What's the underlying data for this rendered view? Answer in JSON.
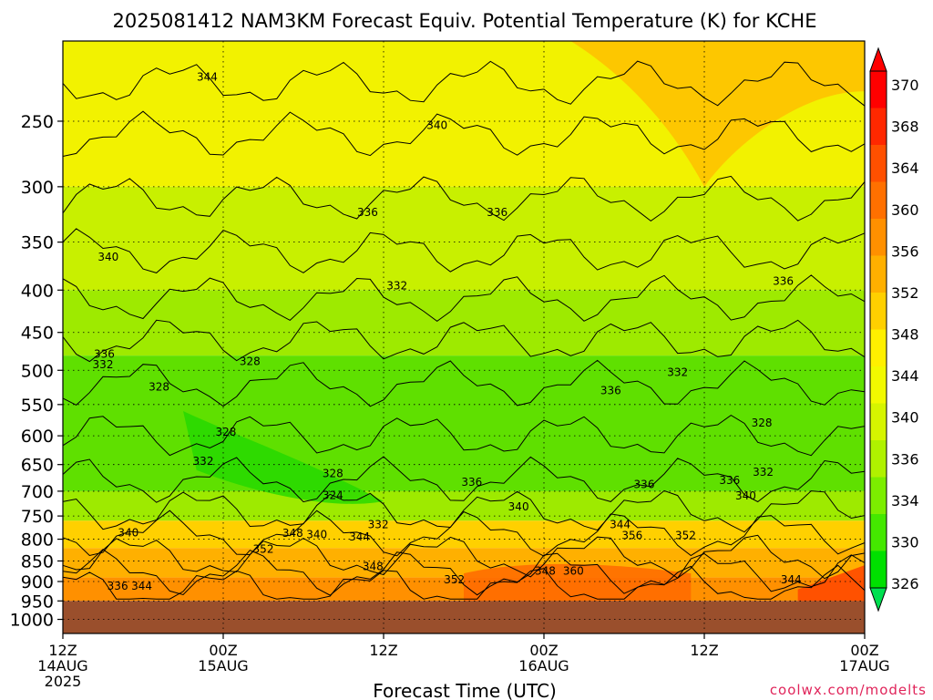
{
  "chart_data": {
    "type": "heatmap",
    "title": "2025081412 NAM3KM Forecast Equiv. Potential Temperature (K) for KCHE",
    "xlabel": "Forecast Time (UTC)",
    "ylabel": "",
    "credit": "coolwx.com/modelts",
    "x_ticks": [
      {
        "hours": 0,
        "line1": "12Z",
        "line2": "14AUG",
        "line3": "2025"
      },
      {
        "hours": 12,
        "line1": "00Z",
        "line2": "15AUG",
        "line3": ""
      },
      {
        "hours": 24,
        "line1": "12Z",
        "line2": "",
        "line3": ""
      },
      {
        "hours": 36,
        "line1": "00Z",
        "line2": "16AUG",
        "line3": ""
      },
      {
        "hours": 48,
        "line1": "12Z",
        "line2": "",
        "line3": ""
      },
      {
        "hours": 60,
        "line1": "00Z",
        "line2": "17AUG",
        "line3": ""
      }
    ],
    "xlim": [
      0,
      60
    ],
    "y_ticks": [
      250,
      300,
      350,
      400,
      450,
      500,
      550,
      600,
      650,
      700,
      750,
      800,
      850,
      900,
      950,
      1000
    ],
    "ylim": [
      200,
      1040
    ],
    "y_scale": "log-pressure (inverted)",
    "grid": true,
    "colorbar": {
      "labels": [
        326,
        330,
        334,
        336,
        340,
        344,
        348,
        352,
        356,
        360,
        364,
        368,
        370
      ],
      "colors": [
        "#00e000",
        "#44e800",
        "#7cee00",
        "#b0f200",
        "#d6f500",
        "#f2fa00",
        "#fff000",
        "#ffd000",
        "#ffb000",
        "#ff9000",
        "#ff7000",
        "#ff5000",
        "#ff2800",
        "#ff0000"
      ]
    },
    "terrain_color": "#9a4f2c",
    "surface_pressure": 950,
    "contour_labels": [
      {
        "text": "344",
        "hours": 10.8,
        "p": 221
      },
      {
        "text": "340",
        "hours": 28.0,
        "p": 253
      },
      {
        "text": "336",
        "hours": 22.8,
        "p": 322
      },
      {
        "text": "336",
        "hours": 32.5,
        "p": 322
      },
      {
        "text": "340",
        "hours": 3.4,
        "p": 365
      },
      {
        "text": "336",
        "hours": 53.9,
        "p": 390
      },
      {
        "text": "332",
        "hours": 25.0,
        "p": 395
      },
      {
        "text": "336",
        "hours": 3.1,
        "p": 478
      },
      {
        "text": "332",
        "hours": 3.0,
        "p": 492
      },
      {
        "text": "328",
        "hours": 14.0,
        "p": 488
      },
      {
        "text": "332",
        "hours": 46.0,
        "p": 503
      },
      {
        "text": "328",
        "hours": 7.2,
        "p": 524
      },
      {
        "text": "336",
        "hours": 41.0,
        "p": 529
      },
      {
        "text": "328",
        "hours": 12.2,
        "p": 594
      },
      {
        "text": "328",
        "hours": 52.3,
        "p": 579
      },
      {
        "text": "332",
        "hours": 10.5,
        "p": 644
      },
      {
        "text": "328",
        "hours": 20.2,
        "p": 666
      },
      {
        "text": "336",
        "hours": 30.6,
        "p": 683
      },
      {
        "text": "336",
        "hours": 43.5,
        "p": 687
      },
      {
        "text": "336",
        "hours": 49.9,
        "p": 679
      },
      {
        "text": "332",
        "hours": 52.4,
        "p": 664
      },
      {
        "text": "324",
        "hours": 20.2,
        "p": 708
      },
      {
        "text": "340",
        "hours": 51.1,
        "p": 709
      },
      {
        "text": "340",
        "hours": 34.1,
        "p": 731
      },
      {
        "text": "332",
        "hours": 23.6,
        "p": 768
      },
      {
        "text": "344",
        "hours": 41.7,
        "p": 768
      },
      {
        "text": "340",
        "hours": 4.9,
        "p": 786
      },
      {
        "text": "348",
        "hours": 17.2,
        "p": 787
      },
      {
        "text": "340",
        "hours": 19.0,
        "p": 790
      },
      {
        "text": "344",
        "hours": 22.2,
        "p": 795
      },
      {
        "text": "356",
        "hours": 42.6,
        "p": 792
      },
      {
        "text": "352",
        "hours": 46.6,
        "p": 792
      },
      {
        "text": "352",
        "hours": 15.0,
        "p": 823
      },
      {
        "text": "348",
        "hours": 23.2,
        "p": 863
      },
      {
        "text": "348",
        "hours": 36.1,
        "p": 874
      },
      {
        "text": "360",
        "hours": 38.2,
        "p": 874
      },
      {
        "text": "352",
        "hours": 29.3,
        "p": 895
      },
      {
        "text": "344",
        "hours": 54.5,
        "p": 895
      },
      {
        "text": "336",
        "hours": 4.1,
        "p": 912
      },
      {
        "text": "344",
        "hours": 5.9,
        "p": 912
      }
    ]
  }
}
